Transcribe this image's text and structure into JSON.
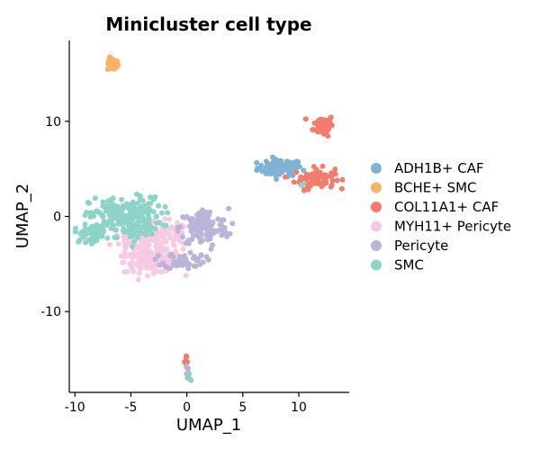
{
  "chart_data": {
    "type": "scatter",
    "title": "Minicluster cell type",
    "xlabel": "UMAP_1",
    "ylabel": "UMAP_2",
    "xlim": [
      -10.5,
      14.5
    ],
    "ylim": [
      -18.5,
      18.5
    ],
    "xticks": [
      -10,
      -5,
      0,
      5,
      10
    ],
    "yticks": [
      -10,
      0,
      10
    ],
    "xtick_labels": [
      "-10",
      "-5",
      "0",
      "5",
      "10"
    ],
    "ytick_labels": [
      "-10",
      "0",
      "10"
    ],
    "grid": false,
    "legend_position": "right",
    "series": [
      {
        "name": "ADH1B+ CAF",
        "color": "#7FB2D5",
        "clusters": [
          {
            "cx": 8.3,
            "cy": 5.1,
            "sx": 1.0,
            "sy": 0.45,
            "n": 90
          }
        ]
      },
      {
        "name": "BCHE+ SMC",
        "color": "#F6B266",
        "clusters": [
          {
            "cx": -6.6,
            "cy": 16.0,
            "sx": 0.25,
            "sy": 0.35,
            "n": 30
          },
          {
            "cx": -4.0,
            "cy": -1.8,
            "sx": 0.6,
            "sy": 0.3,
            "n": 4
          }
        ]
      },
      {
        "name": "COL11A1+ CAF",
        "color": "#F47C6D",
        "clusters": [
          {
            "cx": 12.2,
            "cy": 9.6,
            "sx": 0.45,
            "sy": 0.55,
            "n": 60
          },
          {
            "cx": 11.4,
            "cy": 4.0,
            "sx": 0.9,
            "sy": 0.55,
            "n": 70
          },
          {
            "cx": 0.0,
            "cy": -15.2,
            "sx": 0.1,
            "sy": 0.3,
            "n": 6
          }
        ]
      },
      {
        "name": "MYH11+ Pericyte",
        "color": "#F8C9E2",
        "clusters": [
          {
            "cx": -3.0,
            "cy": -4.8,
            "sx": 1.3,
            "sy": 0.55,
            "n": 140
          },
          {
            "cx": -2.4,
            "cy": -2.2,
            "sx": 1.4,
            "sy": 0.8,
            "n": 120
          },
          {
            "cx": -4.8,
            "cy": -3.0,
            "sx": 0.9,
            "sy": 0.7,
            "n": 40
          }
        ]
      },
      {
        "name": "Pericyte",
        "color": "#B9B4D8",
        "clusters": [
          {
            "cx": 1.5,
            "cy": -1.2,
            "sx": 1.1,
            "sy": 1.0,
            "n": 120
          },
          {
            "cx": -0.2,
            "cy": -4.6,
            "sx": 0.9,
            "sy": 0.45,
            "n": 50
          },
          {
            "cx": 0.0,
            "cy": -16.4,
            "sx": 0.12,
            "sy": 0.5,
            "n": 8
          }
        ]
      },
      {
        "name": "SMC",
        "color": "#8DD3C7",
        "clusters": [
          {
            "cx": -5.5,
            "cy": 0.0,
            "sx": 1.6,
            "sy": 1.0,
            "n": 200
          },
          {
            "cx": -8.6,
            "cy": -1.8,
            "sx": 0.7,
            "sy": 0.45,
            "n": 60
          },
          {
            "cx": -4.6,
            "cy": -1.6,
            "sx": 0.6,
            "sy": 0.5,
            "n": 20
          },
          {
            "cx": 10.2,
            "cy": 3.5,
            "sx": 0.2,
            "sy": 0.2,
            "n": 2
          },
          {
            "cx": 0.2,
            "cy": -17.0,
            "sx": 0.1,
            "sy": 0.2,
            "n": 3
          }
        ]
      }
    ]
  }
}
